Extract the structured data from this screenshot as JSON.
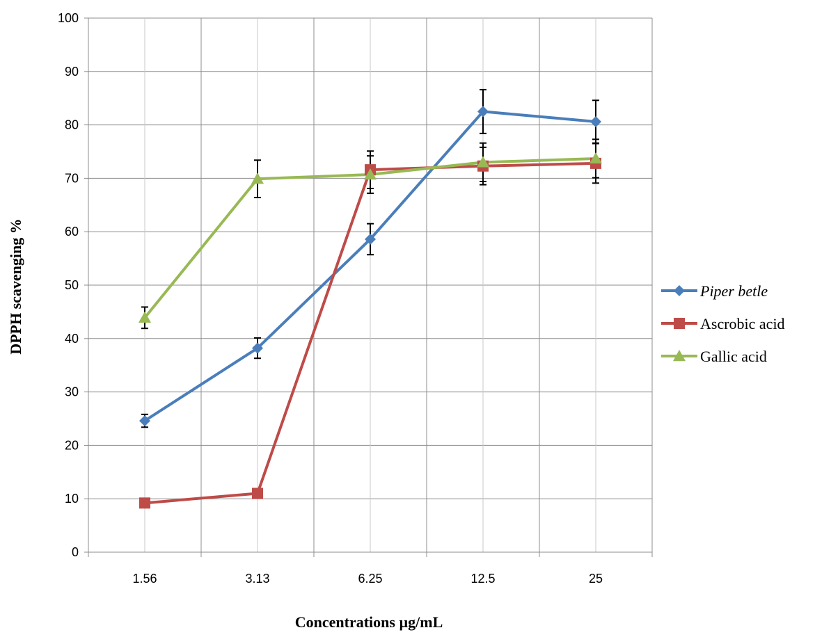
{
  "chart_data": {
    "type": "line",
    "title": "",
    "xlabel": "Concentrations µg/mL",
    "ylabel": "DPPH scavenging %",
    "categories": [
      "1.56",
      "3.13",
      "6.25",
      "12.5",
      "25"
    ],
    "ylim": [
      0,
      100
    ],
    "yticks": [
      0,
      10,
      20,
      30,
      40,
      50,
      60,
      70,
      80,
      90,
      100
    ],
    "grid": true,
    "legend_position": "right",
    "series": [
      {
        "name": "Piper betle",
        "italic": true,
        "color": "#4a7ebb",
        "marker": "diamond",
        "values": [
          24.6,
          38.2,
          58.6,
          82.5,
          80.6
        ],
        "errors": [
          1.2,
          1.9,
          2.9,
          4.1,
          4.0
        ]
      },
      {
        "name": "Ascrobic acid",
        "italic": false,
        "color": "#be4b48",
        "marker": "square",
        "values": [
          9.2,
          11.0,
          71.6,
          72.3,
          72.8
        ],
        "errors": [
          0,
          0,
          3.5,
          3.5,
          3.7
        ]
      },
      {
        "name": "Gallic acid",
        "italic": false,
        "color": "#98b954",
        "marker": "triangle",
        "values": [
          43.9,
          69.9,
          70.7,
          73.0,
          73.7
        ],
        "errors": [
          2.0,
          3.5,
          3.5,
          3.6,
          3.6
        ]
      }
    ]
  }
}
